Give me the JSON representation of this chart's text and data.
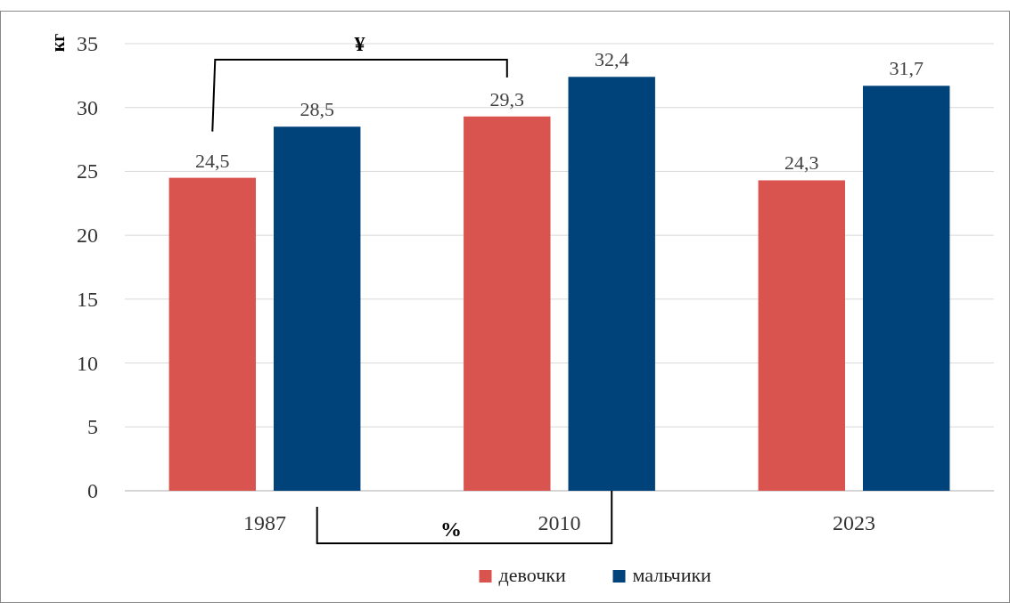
{
  "chart_data": {
    "type": "bar",
    "ylabel": "кг",
    "categories": [
      "1987",
      "2010",
      "2023"
    ],
    "series": [
      {
        "name": "девочки",
        "color": "#d9534f",
        "values": [
          24.5,
          29.3,
          24.3
        ],
        "value_labels": [
          "24,5",
          "29,3",
          "24,3"
        ]
      },
      {
        "name": "мальчики",
        "color": "#00427a",
        "values": [
          28.5,
          32.4,
          31.7
        ],
        "value_labels": [
          "28,5",
          "32,4",
          "31,7"
        ]
      }
    ],
    "ylim": [
      0,
      35
    ],
    "yticks": [
      0,
      5,
      10,
      15,
      20,
      25,
      30,
      35
    ],
    "grid": "y",
    "legend": "bottom",
    "annotations": [
      "¥",
      "%"
    ]
  }
}
